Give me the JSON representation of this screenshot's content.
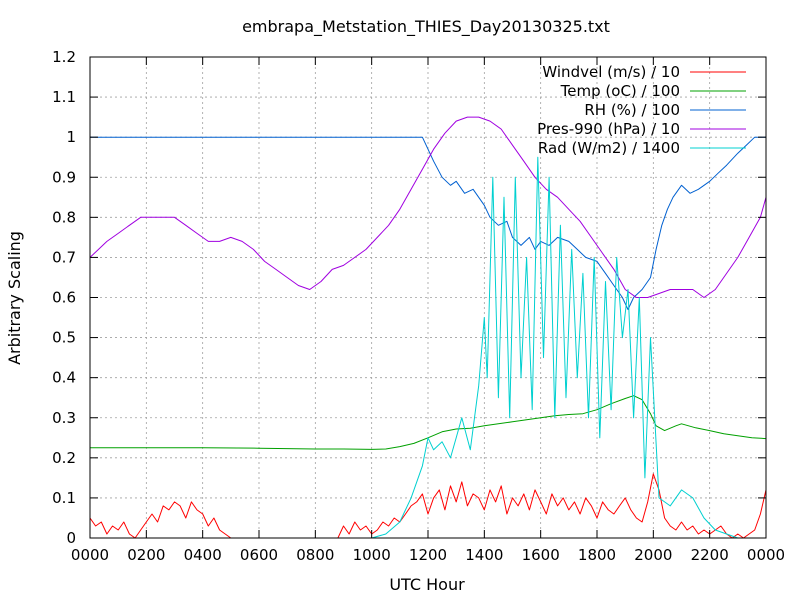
{
  "chart_data": {
    "type": "line",
    "title": "embrapa_Metstation_THIES_Day20130325.txt",
    "xlabel": "UTC Hour",
    "ylabel": "Arbitrary Scaling",
    "xlim": [
      0,
      24
    ],
    "ylim": [
      0,
      1.2
    ],
    "x_ticks": [
      {
        "value": 0,
        "label": "0000"
      },
      {
        "value": 2,
        "label": "0200"
      },
      {
        "value": 4,
        "label": "0400"
      },
      {
        "value": 6,
        "label": "0600"
      },
      {
        "value": 8,
        "label": "0800"
      },
      {
        "value": 10,
        "label": "1000"
      },
      {
        "value": 12,
        "label": "1200"
      },
      {
        "value": 14,
        "label": "1400"
      },
      {
        "value": 16,
        "label": "1600"
      },
      {
        "value": 18,
        "label": "1800"
      },
      {
        "value": 20,
        "label": "2000"
      },
      {
        "value": 22,
        "label": "2200"
      },
      {
        "value": 24,
        "label": "0000"
      }
    ],
    "y_ticks": [
      {
        "value": 0,
        "label": "0"
      },
      {
        "value": 0.1,
        "label": "0.1"
      },
      {
        "value": 0.2,
        "label": "0.2"
      },
      {
        "value": 0.3,
        "label": "0.3"
      },
      {
        "value": 0.4,
        "label": "0.4"
      },
      {
        "value": 0.5,
        "label": "0.5"
      },
      {
        "value": 0.6,
        "label": "0.6"
      },
      {
        "value": 0.7,
        "label": "0.7"
      },
      {
        "value": 0.8,
        "label": "0.8"
      },
      {
        "value": 0.9,
        "label": "0.9"
      },
      {
        "value": 1.0,
        "label": "1"
      },
      {
        "value": 1.1,
        "label": "1.1"
      },
      {
        "value": 1.2,
        "label": "1.2"
      }
    ],
    "grid": true,
    "legend_position": "top-right",
    "series": [
      {
        "name": "Windvel (m/s) / 10",
        "color": "#ff0000",
        "x": [
          0,
          0.2,
          0.4,
          0.6,
          0.8,
          1.0,
          1.2,
          1.4,
          1.6,
          1.8,
          2.0,
          2.2,
          2.4,
          2.6,
          2.8,
          3.0,
          3.2,
          3.4,
          3.6,
          3.8,
          4.0,
          4.2,
          4.4,
          4.6,
          4.8,
          5.0,
          6.0,
          7.0,
          8.0,
          8.8,
          9.0,
          9.2,
          9.4,
          9.6,
          9.8,
          10.0,
          10.2,
          10.4,
          10.6,
          10.8,
          11.0,
          11.2,
          11.4,
          11.6,
          11.8,
          12.0,
          12.2,
          12.4,
          12.6,
          12.8,
          13.0,
          13.2,
          13.4,
          13.6,
          13.8,
          14.0,
          14.2,
          14.4,
          14.6,
          14.8,
          15.0,
          15.2,
          15.4,
          15.6,
          15.8,
          16.0,
          16.2,
          16.4,
          16.6,
          16.8,
          17.0,
          17.2,
          17.4,
          17.6,
          17.8,
          18.0,
          18.2,
          18.4,
          18.6,
          18.8,
          19.0,
          19.2,
          19.4,
          19.6,
          19.8,
          20.0,
          20.2,
          20.4,
          20.6,
          20.8,
          21.0,
          21.2,
          21.4,
          21.6,
          21.8,
          22.0,
          22.2,
          22.4,
          22.6,
          22.8,
          23.0,
          23.2,
          23.4,
          23.6,
          23.8,
          24.0
        ],
        "y": [
          0.05,
          0.03,
          0.04,
          0.01,
          0.03,
          0.02,
          0.04,
          0.01,
          0.0,
          0.02,
          0.04,
          0.06,
          0.04,
          0.08,
          0.07,
          0.09,
          0.08,
          0.05,
          0.09,
          0.07,
          0.06,
          0.03,
          0.05,
          0.02,
          0.01,
          0.0,
          0.0,
          0.0,
          0.0,
          0.0,
          0.03,
          0.01,
          0.04,
          0.02,
          0.03,
          0.01,
          0.02,
          0.04,
          0.03,
          0.05,
          0.04,
          0.06,
          0.08,
          0.09,
          0.11,
          0.06,
          0.1,
          0.12,
          0.07,
          0.13,
          0.09,
          0.14,
          0.08,
          0.11,
          0.1,
          0.07,
          0.12,
          0.09,
          0.13,
          0.06,
          0.1,
          0.08,
          0.11,
          0.07,
          0.12,
          0.09,
          0.06,
          0.11,
          0.08,
          0.1,
          0.07,
          0.09,
          0.06,
          0.1,
          0.08,
          0.05,
          0.09,
          0.07,
          0.06,
          0.08,
          0.1,
          0.07,
          0.05,
          0.04,
          0.09,
          0.16,
          0.12,
          0.05,
          0.03,
          0.02,
          0.04,
          0.02,
          0.03,
          0.01,
          0.02,
          0.01,
          0.02,
          0.03,
          0.01,
          0.0,
          0.01,
          0.0,
          0.01,
          0.02,
          0.06,
          0.12
        ]
      },
      {
        "name": "Temp (oC) / 100",
        "color": "#00a000",
        "x": [
          0,
          2,
          4,
          6,
          7,
          8,
          9,
          10,
          10.5,
          11,
          11.5,
          12,
          12.5,
          13,
          13.5,
          14,
          14.5,
          15,
          15.5,
          16,
          16.5,
          17,
          17.5,
          18,
          18.5,
          19,
          19.3,
          19.6,
          19.9,
          20.1,
          20.4,
          20.8,
          21,
          21.5,
          22,
          22.5,
          23,
          23.5,
          24
        ],
        "y": [
          0.225,
          0.225,
          0.225,
          0.224,
          0.223,
          0.222,
          0.222,
          0.221,
          0.222,
          0.228,
          0.236,
          0.25,
          0.265,
          0.272,
          0.274,
          0.28,
          0.285,
          0.29,
          0.295,
          0.3,
          0.305,
          0.308,
          0.31,
          0.32,
          0.335,
          0.348,
          0.355,
          0.345,
          0.31,
          0.28,
          0.268,
          0.28,
          0.285,
          0.275,
          0.268,
          0.26,
          0.255,
          0.25,
          0.248
        ]
      },
      {
        "name": "RH (%) / 100",
        "color": "#0060d0",
        "x": [
          0,
          2,
          4,
          6,
          8,
          10,
          11,
          11.8,
          12.0,
          12.2,
          12.5,
          12.8,
          13.0,
          13.3,
          13.6,
          14.0,
          14.2,
          14.5,
          14.8,
          15.0,
          15.3,
          15.6,
          15.8,
          16.0,
          16.3,
          16.6,
          17.0,
          17.3,
          17.6,
          18.0,
          18.3,
          18.6,
          18.9,
          19.1,
          19.3,
          19.6,
          19.9,
          20.1,
          20.3,
          20.5,
          20.7,
          21.0,
          21.3,
          21.6,
          22.0,
          22.3,
          22.6,
          23.0,
          23.3,
          23.6,
          24.0
        ],
        "y": [
          1.0,
          1.0,
          1.0,
          1.0,
          1.0,
          1.0,
          1.0,
          1.0,
          0.97,
          0.94,
          0.9,
          0.88,
          0.89,
          0.86,
          0.87,
          0.83,
          0.8,
          0.78,
          0.79,
          0.75,
          0.73,
          0.75,
          0.72,
          0.74,
          0.73,
          0.75,
          0.74,
          0.72,
          0.7,
          0.69,
          0.66,
          0.63,
          0.6,
          0.57,
          0.6,
          0.62,
          0.65,
          0.72,
          0.78,
          0.82,
          0.85,
          0.88,
          0.86,
          0.87,
          0.89,
          0.91,
          0.93,
          0.96,
          0.98,
          1.0,
          1.0
        ]
      },
      {
        "name": "Pres-990 (hPa) / 10",
        "color": "#a000e0",
        "x": [
          0,
          0.3,
          0.6,
          1.0,
          1.4,
          1.8,
          2.2,
          2.6,
          3.0,
          3.4,
          3.8,
          4.2,
          4.6,
          5.0,
          5.4,
          5.8,
          6.2,
          6.6,
          7.0,
          7.4,
          7.8,
          8.2,
          8.6,
          9.0,
          9.4,
          9.8,
          10.2,
          10.6,
          11.0,
          11.4,
          11.8,
          12.2,
          12.6,
          13.0,
          13.4,
          13.8,
          14.2,
          14.6,
          15.0,
          15.4,
          15.8,
          16.2,
          16.6,
          17.0,
          17.4,
          17.8,
          18.2,
          18.6,
          19.0,
          19.4,
          19.8,
          20.2,
          20.6,
          21.0,
          21.4,
          21.8,
          22.2,
          22.6,
          23.0,
          23.4,
          23.8,
          24.0
        ],
        "y": [
          0.7,
          0.72,
          0.74,
          0.76,
          0.78,
          0.8,
          0.8,
          0.8,
          0.8,
          0.78,
          0.76,
          0.74,
          0.74,
          0.75,
          0.74,
          0.72,
          0.69,
          0.67,
          0.65,
          0.63,
          0.62,
          0.64,
          0.67,
          0.68,
          0.7,
          0.72,
          0.75,
          0.78,
          0.82,
          0.87,
          0.92,
          0.97,
          1.01,
          1.04,
          1.05,
          1.05,
          1.04,
          1.02,
          0.98,
          0.94,
          0.9,
          0.87,
          0.85,
          0.82,
          0.79,
          0.75,
          0.71,
          0.67,
          0.62,
          0.6,
          0.6,
          0.61,
          0.62,
          0.62,
          0.62,
          0.6,
          0.62,
          0.66,
          0.7,
          0.75,
          0.8,
          0.85
        ]
      },
      {
        "name": "Rad (W/m2) / 1400",
        "color": "#00d0d0",
        "x": [
          0,
          2,
          4,
          6,
          8,
          10,
          10.5,
          11.0,
          11.4,
          11.8,
          12.0,
          12.2,
          12.5,
          12.8,
          13.0,
          13.2,
          13.5,
          13.8,
          14.0,
          14.1,
          14.3,
          14.5,
          14.7,
          14.9,
          15.1,
          15.3,
          15.5,
          15.7,
          15.9,
          16.1,
          16.3,
          16.5,
          16.7,
          16.9,
          17.1,
          17.3,
          17.5,
          17.7,
          17.9,
          18.1,
          18.3,
          18.5,
          18.7,
          18.9,
          19.1,
          19.3,
          19.5,
          19.7,
          19.9,
          20.2,
          20.6,
          21.0,
          21.4,
          21.8,
          22.2,
          22.6,
          23.0,
          24.0
        ],
        "y": [
          0.0,
          0.0,
          0.0,
          0.0,
          0.0,
          0.0,
          0.01,
          0.04,
          0.1,
          0.18,
          0.25,
          0.22,
          0.24,
          0.2,
          0.25,
          0.3,
          0.22,
          0.38,
          0.55,
          0.4,
          0.9,
          0.35,
          0.85,
          0.3,
          0.9,
          0.4,
          0.7,
          0.32,
          0.95,
          0.45,
          0.9,
          0.3,
          0.78,
          0.35,
          0.72,
          0.4,
          0.66,
          0.3,
          0.7,
          0.25,
          0.64,
          0.32,
          0.7,
          0.5,
          0.62,
          0.3,
          0.6,
          0.15,
          0.5,
          0.1,
          0.08,
          0.12,
          0.1,
          0.05,
          0.02,
          0.01,
          0.0,
          0.0
        ]
      }
    ]
  }
}
